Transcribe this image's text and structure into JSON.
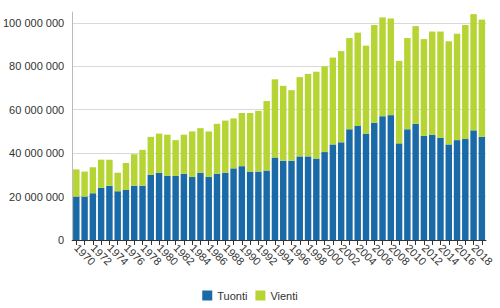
{
  "chart_data": {
    "type": "bar",
    "stacked": true,
    "grid": true,
    "legend": "bottom",
    "categories": [
      "1970",
      null,
      "1972",
      null,
      "1974",
      null,
      "1976",
      null,
      "1978",
      null,
      "1980",
      null,
      "1982",
      null,
      "1984",
      null,
      "1986",
      null,
      "1988",
      null,
      "1990",
      null,
      "1992",
      null,
      "1994",
      null,
      "1996",
      null,
      "1998",
      null,
      "2000",
      null,
      "2002",
      null,
      "2004",
      null,
      "2006",
      null,
      "2008",
      null,
      "2010",
      null,
      "2012",
      null,
      "2014",
      null,
      "2016",
      null,
      "2018",
      null
    ],
    "series": [
      {
        "name": "Tuonti",
        "color": "#1b6aa8",
        "values": [
          20000000,
          20000000,
          21500000,
          24000000,
          25000000,
          22500000,
          23000000,
          25000000,
          25000000,
          30000000,
          31000000,
          29500000,
          29500000,
          30500000,
          29000000,
          31000000,
          29000000,
          30500000,
          31000000,
          33000000,
          34000000,
          31500000,
          31500000,
          32000000,
          38000000,
          36500000,
          36500000,
          38500000,
          38500000,
          37500000,
          40500000,
          44000000,
          45000000,
          51000000,
          52500000,
          49000000,
          54000000,
          57000000,
          57500000,
          44500000,
          51000000,
          53500000,
          48000000,
          48500000,
          47000000,
          44000000,
          46000000,
          46500000,
          50500000,
          47500000
        ]
      },
      {
        "name": "Vienti",
        "color": "#b6d433",
        "values": [
          12500000,
          11500000,
          12000000,
          13000000,
          12000000,
          8500000,
          12500000,
          14500000,
          16500000,
          17500000,
          18000000,
          19000000,
          16500000,
          18000000,
          21000000,
          20500000,
          21000000,
          23000000,
          24000000,
          23000000,
          24500000,
          27000000,
          28000000,
          32000000,
          36000000,
          34500000,
          32500000,
          36500000,
          38000000,
          40000000,
          39500000,
          40000000,
          42000000,
          42000000,
          43000000,
          40500000,
          45000000,
          45500000,
          44500000,
          38000000,
          42000000,
          45000000,
          44500000,
          47500000,
          49000000,
          47500000,
          49000000,
          52500000,
          53500000,
          54000000
        ]
      }
    ],
    "ylim": [
      0,
      105000000
    ],
    "yticks": [
      0,
      {
        "value": 20000000,
        "label": "20 000 000"
      },
      {
        "value": 40000000,
        "label": "40 000 000"
      },
      {
        "value": 60000000,
        "label": "60 000 000"
      },
      {
        "value": 80000000,
        "label": "80 000 000"
      },
      {
        "value": 100000000,
        "label": "100 000 000"
      }
    ]
  }
}
